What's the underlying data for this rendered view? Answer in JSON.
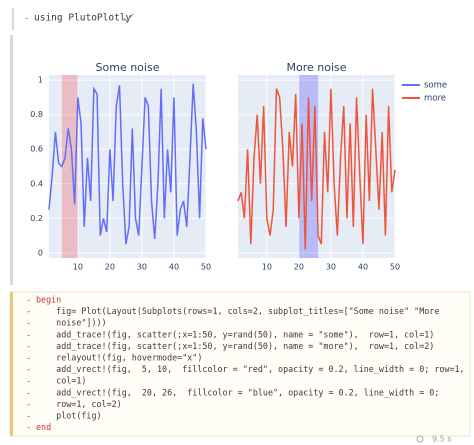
{
  "cells": [
    {
      "code": "using PlutoPlotly"
    },
    {
      "code": [
        "begin",
        "    fig= Plot(Layout(Subplots(rows=1, cols=2, subplot_titles=[\"Some noise\" \"More",
        "    noise\"])))",
        "    add_trace!(fig, scatter(;x=1:50, y=rand(50), name = \"some\"),  row=1, col=1)",
        "    add_trace!(fig, scatter(;x=1:50, y=rand(50), name = \"more\"),  row=1, col=2)",
        "    relayout!(fig, hovermode=\"x\")",
        "    add_vrect!(fig,  5, 10,  fillcolor = \"red\", opacity = 0.2, line_width = 0; row=1,",
        "    col=1)",
        "    add_vrect!(fig,  20, 26,  fillcolor = \"blue\", opacity = 0.2, line_width = 0;",
        "    row=1, col=2)",
        "    plot(fig)",
        "end"
      ],
      "runtime": "9.5 s"
    }
  ],
  "chart_data": [
    {
      "type": "line",
      "title": "Some noise",
      "x": [
        1,
        2,
        3,
        4,
        5,
        6,
        7,
        8,
        9,
        10,
        11,
        12,
        13,
        14,
        15,
        16,
        17,
        18,
        19,
        20,
        21,
        22,
        23,
        24,
        25,
        26,
        27,
        28,
        29,
        30,
        31,
        32,
        33,
        34,
        35,
        36,
        37,
        38,
        39,
        40,
        41,
        42,
        43,
        44,
        45,
        46,
        47,
        48,
        49,
        50
      ],
      "series": [
        {
          "name": "some",
          "color": "#636efa",
          "values": [
            0.25,
            0.45,
            0.7,
            0.52,
            0.5,
            0.55,
            0.72,
            0.6,
            0.28,
            0.9,
            0.75,
            0.15,
            0.55,
            0.3,
            0.95,
            0.92,
            0.1,
            0.2,
            0.12,
            0.6,
            0.3,
            0.85,
            0.97,
            0.4,
            0.05,
            0.15,
            0.72,
            0.2,
            0.1,
            0.5,
            0.9,
            0.85,
            0.3,
            0.08,
            0.4,
            0.95,
            0.2,
            0.6,
            0.35,
            0.9,
            0.1,
            0.25,
            0.3,
            0.15,
            0.55,
            0.98,
            0.7,
            0.2,
            0.78,
            0.6
          ]
        }
      ],
      "vrect": {
        "x0": 5,
        "x1": 10,
        "color": "red",
        "opacity": 0.2
      },
      "xlim": [
        1,
        50
      ],
      "xticks": [
        10,
        20,
        30,
        40,
        50
      ],
      "ylim": [
        -0.03,
        1.03
      ],
      "yticks": [
        0,
        0.2,
        0.4,
        0.6,
        0.8,
        1
      ],
      "grid": true
    },
    {
      "type": "line",
      "title": "More noise",
      "x": [
        1,
        2,
        3,
        4,
        5,
        6,
        7,
        8,
        9,
        10,
        11,
        12,
        13,
        14,
        15,
        16,
        17,
        18,
        19,
        20,
        21,
        22,
        23,
        24,
        25,
        26,
        27,
        28,
        29,
        30,
        31,
        32,
        33,
        34,
        35,
        36,
        37,
        38,
        39,
        40,
        41,
        42,
        43,
        44,
        45,
        46,
        47,
        48,
        49,
        50
      ],
      "series": [
        {
          "name": "more",
          "color": "#ef553b",
          "values": [
            0.3,
            0.35,
            0.2,
            0.6,
            0.05,
            0.55,
            0.8,
            0.4,
            0.85,
            0.2,
            0.1,
            0.25,
            0.95,
            0.9,
            0.6,
            0.15,
            0.7,
            0.5,
            0.92,
            0.2,
            0.75,
            0.02,
            0.9,
            0.3,
            0.85,
            0.1,
            0.05,
            0.7,
            0.35,
            0.95,
            0.4,
            0.1,
            0.55,
            0.85,
            0.2,
            0.75,
            0.15,
            0.9,
            0.45,
            0.05,
            0.8,
            0.3,
            0.95,
            0.6,
            0.25,
            0.7,
            0.1,
            0.85,
            0.35,
            0.48
          ]
        }
      ],
      "vrect": {
        "x0": 20,
        "x1": 26,
        "color": "blue",
        "opacity": 0.2
      },
      "xlim": [
        1,
        50
      ],
      "xticks": [
        10,
        20,
        30,
        40,
        50
      ],
      "ylim": [
        -0.03,
        1.03
      ],
      "yticks": [
        0,
        0.2,
        0.4,
        0.6,
        0.8,
        1
      ],
      "grid": true
    }
  ]
}
